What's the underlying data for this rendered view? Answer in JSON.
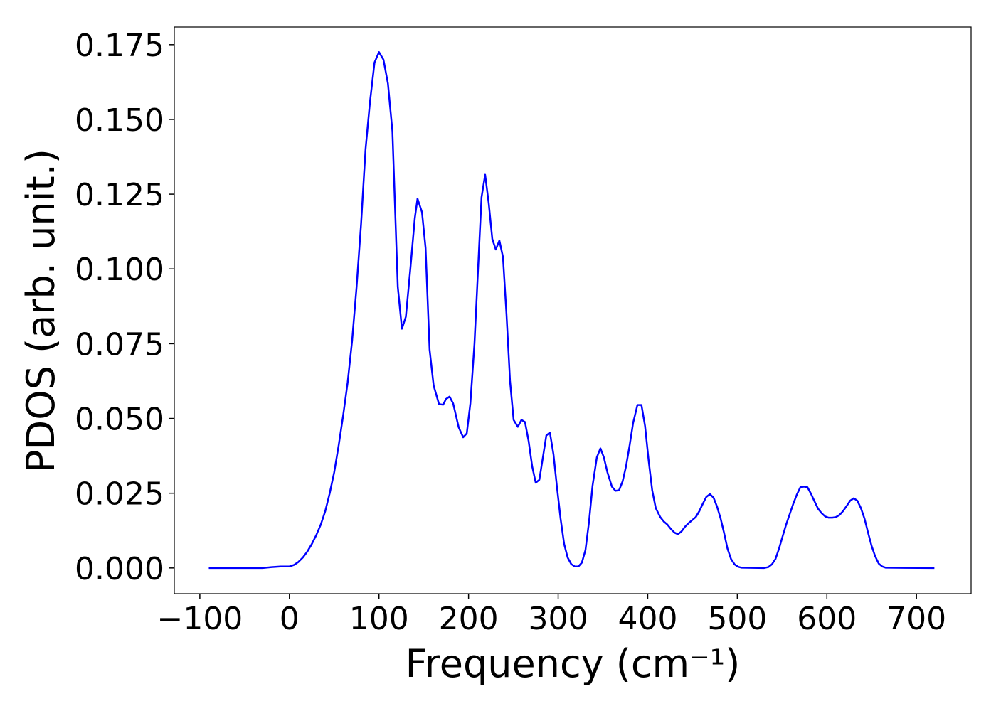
{
  "chart_data": {
    "type": "line",
    "xlabel": "Frequency (cm⁻¹)",
    "ylabel": "PDOS (arb. unit.)",
    "color": "#0000ff",
    "xlim": [
      -128.5,
      761
    ],
    "ylim": [
      -0.0086,
      0.1809
    ],
    "xticks": [
      {
        "value": -100,
        "label": "−100"
      },
      0,
      100,
      200,
      300,
      400,
      500,
      600,
      700
    ],
    "yticks": [
      {
        "value": 0,
        "label": "0.000"
      },
      {
        "value": 0.025,
        "label": "0.025"
      },
      {
        "value": 0.05,
        "label": "0.050"
      },
      {
        "value": 0.075,
        "label": "0.075"
      },
      {
        "value": 0.1,
        "label": "0.100"
      },
      {
        "value": 0.125,
        "label": "0.125"
      },
      {
        "value": 0.15,
        "label": "0.150"
      },
      {
        "value": 0.175,
        "label": "0.175"
      }
    ],
    "x": [
      -90,
      -30,
      -20,
      -10,
      0,
      5,
      10,
      15,
      20,
      25,
      30,
      35,
      40,
      45,
      50,
      55,
      60,
      65,
      70,
      75,
      80,
      85,
      90,
      95,
      100,
      105,
      110,
      115,
      121,
      125.6,
      130,
      135,
      140,
      143,
      148,
      152,
      156.5,
      161,
      167,
      171.6,
      174.8,
      178.8,
      182.8,
      189,
      194,
      198,
      202,
      206.6,
      210.6,
      214.5,
      218.5,
      222.5,
      226.5,
      230.4,
      234.4,
      238.4,
      242.3,
      246.3,
      250.3,
      255,
      259,
      263,
      267,
      271,
      275,
      279,
      283,
      286.8,
      290.8,
      294.8,
      298.7,
      302.7,
      306.7,
      310.6,
      314.6,
      318.6,
      322.6,
      326.5,
      330.5,
      334.5,
      338.4,
      343.2,
      347.2,
      351,
      355,
      360,
      364,
      368,
      372,
      375.8,
      379.8,
      383.7,
      388.5,
      393,
      397,
      401,
      405,
      409,
      414,
      418,
      422,
      426,
      430,
      433.8,
      437.7,
      441.7,
      445.7,
      449.6,
      453.6,
      457.6,
      461.5,
      465.5,
      469.5,
      473.5,
      477.4,
      481.4,
      485.4,
      489,
      493,
      497,
      501,
      505,
      530,
      534.6,
      538.6,
      542.6,
      546.6,
      550.5,
      554.5,
      558.5,
      562.5,
      566.4,
      570.4,
      574.4,
      578.3,
      582.3,
      586.3,
      590.2,
      594.2,
      598.2,
      602,
      606,
      610,
      614,
      618,
      622,
      626,
      630,
      634,
      638,
      642,
      645.8,
      649.8,
      653.8,
      657.8,
      661.7,
      665.7,
      720
    ],
    "values": [
      0,
      0,
      0.0003,
      0.0005,
      0.0005,
      0.001,
      0.002,
      0.0035,
      0.0055,
      0.008,
      0.011,
      0.0145,
      0.019,
      0.025,
      0.032,
      0.041,
      0.051,
      0.062,
      0.076,
      0.094,
      0.115,
      0.14,
      0.156,
      0.169,
      0.1725,
      0.17,
      0.162,
      0.146,
      0.094,
      0.08,
      0.084,
      0.1,
      0.117,
      0.1235,
      0.119,
      0.107,
      0.073,
      0.061,
      0.0548,
      0.0546,
      0.0565,
      0.0573,
      0.055,
      0.047,
      0.0437,
      0.045,
      0.055,
      0.075,
      0.1,
      0.124,
      0.1315,
      0.122,
      0.11,
      0.1065,
      0.1095,
      0.104,
      0.085,
      0.0625,
      0.0495,
      0.0472,
      0.0495,
      0.0488,
      0.0425,
      0.034,
      0.0285,
      0.0295,
      0.037,
      0.0443,
      0.0453,
      0.038,
      0.027,
      0.0165,
      0.008,
      0.0035,
      0.0013,
      0.0005,
      0.0005,
      0.0018,
      0.006,
      0.0155,
      0.0275,
      0.037,
      0.04,
      0.037,
      0.032,
      0.0272,
      0.0258,
      0.026,
      0.029,
      0.034,
      0.041,
      0.0485,
      0.0545,
      0.0545,
      0.0475,
      0.036,
      0.026,
      0.02,
      0.017,
      0.0155,
      0.0145,
      0.013,
      0.0118,
      0.0113,
      0.0122,
      0.0138,
      0.015,
      0.016,
      0.017,
      0.019,
      0.0215,
      0.0238,
      0.0247,
      0.0235,
      0.0205,
      0.0165,
      0.0115,
      0.0065,
      0.003,
      0.0012,
      0.0004,
      0.0001,
      0,
      0.0003,
      0.0012,
      0.003,
      0.0065,
      0.0105,
      0.0145,
      0.018,
      0.0215,
      0.0245,
      0.027,
      0.0272,
      0.027,
      0.0248,
      0.0222,
      0.0198,
      0.0183,
      0.0172,
      0.0168,
      0.0168,
      0.017,
      0.0177,
      0.019,
      0.0207,
      0.0225,
      0.0233,
      0.0225,
      0.02,
      0.0165,
      0.012,
      0.0075,
      0.004,
      0.0015,
      0.0005,
      0.0001,
      0
    ]
  }
}
